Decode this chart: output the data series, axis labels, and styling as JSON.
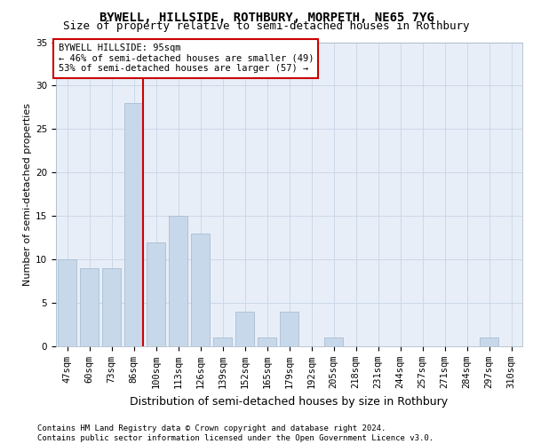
{
  "title": "BYWELL, HILLSIDE, ROTHBURY, MORPETH, NE65 7YG",
  "subtitle": "Size of property relative to semi-detached houses in Rothbury",
  "xlabel": "Distribution of semi-detached houses by size in Rothbury",
  "ylabel": "Number of semi-detached properties",
  "categories": [
    "47sqm",
    "60sqm",
    "73sqm",
    "86sqm",
    "100sqm",
    "113sqm",
    "126sqm",
    "139sqm",
    "152sqm",
    "165sqm",
    "179sqm",
    "192sqm",
    "205sqm",
    "218sqm",
    "231sqm",
    "244sqm",
    "257sqm",
    "271sqm",
    "284sqm",
    "297sqm",
    "310sqm"
  ],
  "values": [
    10,
    9,
    9,
    28,
    12,
    15,
    13,
    1,
    4,
    1,
    4,
    0,
    1,
    0,
    0,
    0,
    0,
    0,
    0,
    1,
    0
  ],
  "bar_color": "#c8d8eb",
  "bar_edge_color": "#a0b8cc",
  "highlight_bar_index": 3,
  "vline_x": 3.425,
  "annotation_text": "BYWELL HILLSIDE: 95sqm\n← 46% of semi-detached houses are smaller (49)\n53% of semi-detached houses are larger (57) →",
  "annotation_box_color": "#ffffff",
  "annotation_box_edge": "#cc0000",
  "vline_color": "#cc0000",
  "grid_color": "#ccd8e8",
  "background_color": "#e8eef8",
  "ylim": [
    0,
    35
  ],
  "yticks": [
    0,
    5,
    10,
    15,
    20,
    25,
    30,
    35
  ],
  "footer_text": "Contains HM Land Registry data © Crown copyright and database right 2024.\nContains public sector information licensed under the Open Government Licence v3.0.",
  "title_fontsize": 10,
  "subtitle_fontsize": 9,
  "xlabel_fontsize": 9,
  "ylabel_fontsize": 8,
  "tick_fontsize": 7.5,
  "annotation_fontsize": 7.5,
  "footer_fontsize": 6.5
}
